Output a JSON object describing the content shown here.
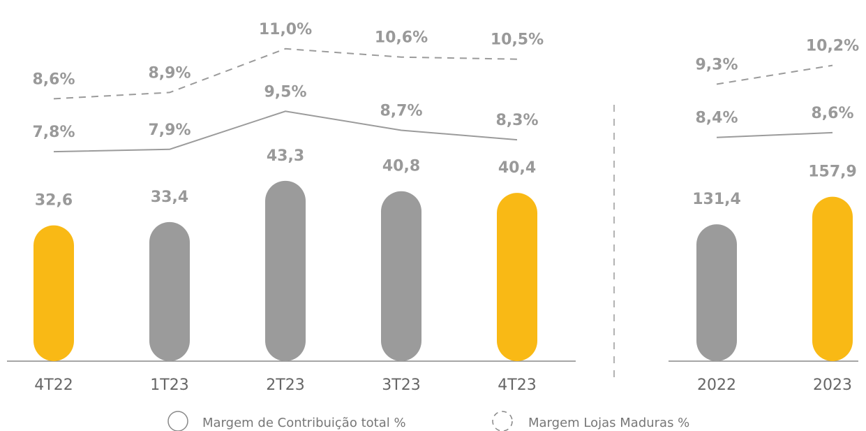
{
  "chart_data": [
    {
      "type": "bar",
      "categories": [
        "4T22",
        "1T23",
        "2T23",
        "3T23",
        "4T23"
      ],
      "values": [
        32.6,
        33.4,
        43.3,
        40.8,
        40.4
      ],
      "value_labels": [
        "32,6",
        "33,4",
        "43,3",
        "40,8",
        "40,4"
      ],
      "colors": [
        "#f9b915",
        "#9b9b9b",
        "#9b9b9b",
        "#9b9b9b",
        "#f9b915"
      ],
      "ylim": [
        0,
        80
      ],
      "series": [
        {
          "name": "Margem de Contribuição total %",
          "color": "#9b9b9b",
          "dash": false,
          "axis": "y2",
          "values": [
            7.8,
            7.9,
            9.5,
            8.7,
            8.3
          ],
          "value_labels": [
            "7,8%",
            "7,9%",
            "9,5%",
            "8,7%",
            "8,3%"
          ]
        },
        {
          "name": "Margem Lojas Maduras %",
          "color": "#9b9b9b",
          "dash": true,
          "axis": "y3",
          "values": [
            8.6,
            8.9,
            11.0,
            10.6,
            10.5
          ],
          "value_labels": [
            "8,6%",
            "8,9%",
            "11,0%",
            "10,6%",
            "10,5%"
          ]
        }
      ],
      "y2lim": [
        -1,
        13
      ],
      "y3lim": [
        -4,
        12
      ]
    },
    {
      "type": "bar",
      "categories": [
        "2022",
        "2023"
      ],
      "values": [
        131.4,
        157.9
      ],
      "value_labels": [
        "131,4",
        "157,9"
      ],
      "colors": [
        "#9b9b9b",
        "#f9b915"
      ],
      "ylim": [
        0,
        320
      ],
      "series": [
        {
          "color": "#9b9b9b",
          "dash": false,
          "axis": "y2",
          "values": [
            8.4,
            8.6
          ],
          "value_labels": [
            "8,4%",
            "8,6%"
          ]
        },
        {
          "color": "#9b9b9b",
          "dash": true,
          "axis": "y3",
          "values": [
            9.3,
            10.2
          ],
          "value_labels": [
            "9,3%",
            "10,2%"
          ]
        }
      ],
      "y2lim": [
        -1,
        13
      ],
      "y3lim": [
        -4,
        12
      ]
    }
  ]
}
